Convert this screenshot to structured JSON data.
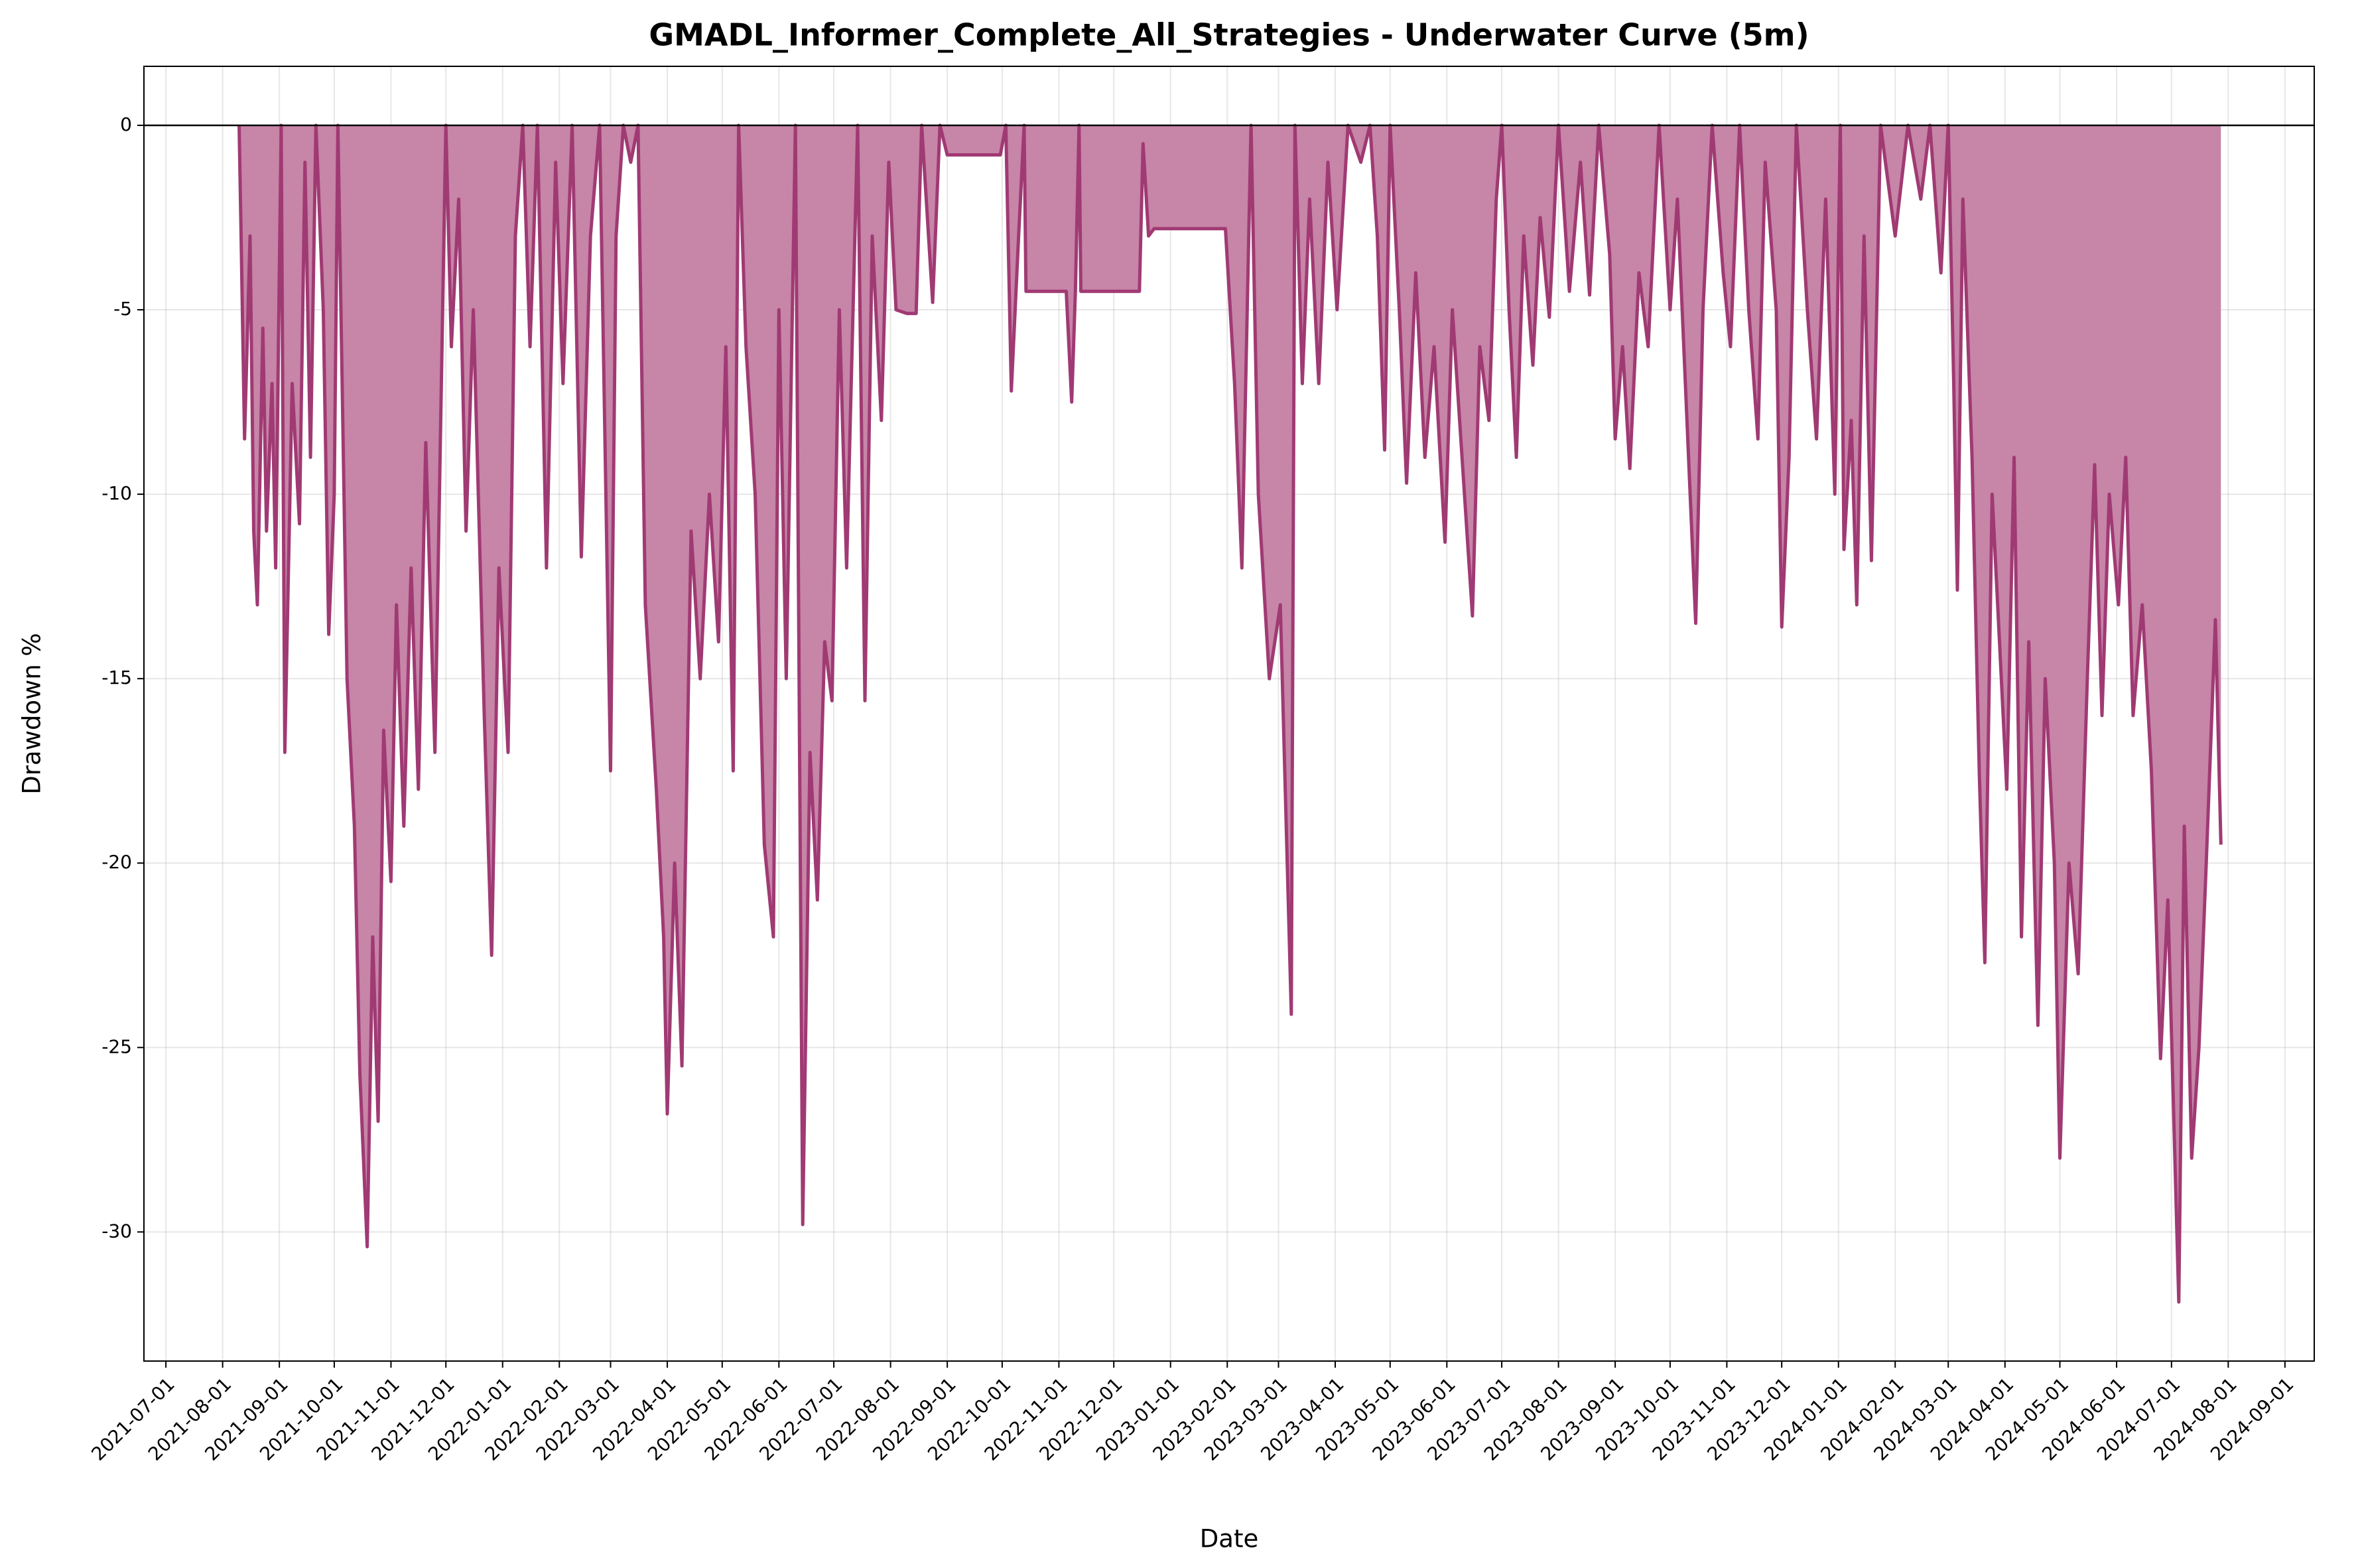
{
  "chart_data": {
    "type": "area",
    "title": "GMADL_Informer_Complete_All_Strategies - Underwater Curve (5m)",
    "x_label": "Date",
    "y_label": "Drawdown %",
    "color": "#a03a73",
    "fill_color": "#c785a8",
    "grid": true,
    "xlim": [
      "2021-06-19",
      "2024-09-17"
    ],
    "ylim": [
      -33.5,
      1.6
    ],
    "yticks": [
      0,
      -5,
      -10,
      -15,
      -20,
      -25,
      -30
    ],
    "xticks": [
      "2021-07-01",
      "2021-08-01",
      "2021-09-01",
      "2021-10-01",
      "2021-11-01",
      "2021-12-01",
      "2022-01-01",
      "2022-02-01",
      "2022-03-01",
      "2022-04-01",
      "2022-05-01",
      "2022-06-01",
      "2022-07-01",
      "2022-08-01",
      "2022-09-01",
      "2022-10-01",
      "2022-11-01",
      "2022-12-01",
      "2023-01-01",
      "2023-02-01",
      "2023-03-01",
      "2023-04-01",
      "2023-05-01",
      "2023-06-01",
      "2023-07-01",
      "2023-08-01",
      "2023-09-01",
      "2023-10-01",
      "2023-11-01",
      "2023-12-01",
      "2024-01-01",
      "2024-02-01",
      "2024-03-01",
      "2024-04-01",
      "2024-05-01",
      "2024-06-01",
      "2024-07-01",
      "2024-08-01",
      "2024-09-01"
    ],
    "x": [
      "2021-08-10",
      "2021-08-11",
      "2021-08-13",
      "2021-08-16",
      "2021-08-18",
      "2021-08-20",
      "2021-08-23",
      "2021-08-25",
      "2021-08-28",
      "2021-08-30",
      "2021-09-02",
      "2021-09-04",
      "2021-09-08",
      "2021-09-12",
      "2021-09-15",
      "2021-09-18",
      "2021-09-21",
      "2021-09-25",
      "2021-09-28",
      "2021-10-01",
      "2021-10-03",
      "2021-10-08",
      "2021-10-12",
      "2021-10-15",
      "2021-10-19",
      "2021-10-22",
      "2021-10-25",
      "2021-10-28",
      "2021-11-01",
      "2021-11-04",
      "2021-11-08",
      "2021-11-12",
      "2021-11-16",
      "2021-11-20",
      "2021-11-25",
      "2021-12-01",
      "2021-12-04",
      "2021-12-08",
      "2021-12-12",
      "2021-12-16",
      "2021-12-22",
      "2021-12-26",
      "2021-12-30",
      "2022-01-04",
      "2022-01-08",
      "2022-01-12",
      "2022-01-16",
      "2022-01-20",
      "2022-01-25",
      "2022-01-30",
      "2022-02-03",
      "2022-02-08",
      "2022-02-13",
      "2022-02-18",
      "2022-02-23",
      "2022-03-01",
      "2022-03-04",
      "2022-03-08",
      "2022-03-12",
      "2022-03-16",
      "2022-03-20",
      "2022-03-26",
      "2022-03-30",
      "2022-04-01",
      "2022-04-05",
      "2022-04-09",
      "2022-04-14",
      "2022-04-19",
      "2022-04-24",
      "2022-04-29",
      "2022-05-03",
      "2022-05-07",
      "2022-05-10",
      "2022-05-14",
      "2022-05-19",
      "2022-05-24",
      "2022-05-29",
      "2022-06-01",
      "2022-06-05",
      "2022-06-10",
      "2022-06-14",
      "2022-06-18",
      "2022-06-22",
      "2022-06-26",
      "2022-06-30",
      "2022-07-04",
      "2022-07-08",
      "2022-07-14",
      "2022-07-18",
      "2022-07-22",
      "2022-07-27",
      "2022-07-31",
      "2022-08-04",
      "2022-08-10",
      "2022-08-15",
      "2022-08-18",
      "2022-08-24",
      "2022-08-28",
      "2022-09-01",
      "2022-09-30",
      "2022-10-03",
      "2022-10-06",
      "2022-10-10",
      "2022-10-13",
      "2022-10-14",
      "2022-11-05",
      "2022-11-08",
      "2022-11-10",
      "2022-11-12",
      "2022-11-13",
      "2022-12-15",
      "2022-12-17",
      "2022-12-20",
      "2022-12-23",
      "2023-01-31",
      "2023-02-05",
      "2023-02-09",
      "2023-02-14",
      "2023-02-18",
      "2023-02-24",
      "2023-03-02",
      "2023-03-08",
      "2023-03-10",
      "2023-03-14",
      "2023-03-18",
      "2023-03-23",
      "2023-03-28",
      "2023-04-02",
      "2023-04-08",
      "2023-04-15",
      "2023-04-20",
      "2023-04-24",
      "2023-04-28",
      "2023-05-01",
      "2023-05-06",
      "2023-05-10",
      "2023-05-15",
      "2023-05-20",
      "2023-05-25",
      "2023-05-31",
      "2023-06-04",
      "2023-06-15",
      "2023-06-19",
      "2023-06-24",
      "2023-06-28",
      "2023-07-01",
      "2023-07-05",
      "2023-07-09",
      "2023-07-13",
      "2023-07-18",
      "2023-07-22",
      "2023-07-27",
      "2023-08-01",
      "2023-08-07",
      "2023-08-13",
      "2023-08-18",
      "2023-08-23",
      "2023-08-29",
      "2023-09-01",
      "2023-09-05",
      "2023-09-09",
      "2023-09-14",
      "2023-09-19",
      "2023-09-25",
      "2023-10-01",
      "2023-10-05",
      "2023-10-15",
      "2023-10-19",
      "2023-10-24",
      "2023-10-30",
      "2023-11-03",
      "2023-11-08",
      "2023-11-13",
      "2023-11-18",
      "2023-11-22",
      "2023-11-28",
      "2023-12-01",
      "2023-12-05",
      "2023-12-09",
      "2023-12-15",
      "2023-12-20",
      "2023-12-25",
      "2023-12-30",
      "2024-01-02",
      "2024-01-04",
      "2024-01-08",
      "2024-01-11",
      "2024-01-15",
      "2024-01-19",
      "2024-01-24",
      "2024-02-01",
      "2024-02-08",
      "2024-02-15",
      "2024-02-20",
      "2024-02-26",
      "2024-03-01",
      "2024-03-04",
      "2024-03-06",
      "2024-03-09",
      "2024-03-14",
      "2024-03-18",
      "2024-03-21",
      "2024-03-25",
      "2024-03-29",
      "2024-04-02",
      "2024-04-06",
      "2024-04-10",
      "2024-04-14",
      "2024-04-19",
      "2024-04-23",
      "2024-04-28",
      "2024-05-01",
      "2024-05-06",
      "2024-05-11",
      "2024-05-16",
      "2024-05-20",
      "2024-05-24",
      "2024-05-28",
      "2024-06-02",
      "2024-06-06",
      "2024-06-10",
      "2024-06-15",
      "2024-06-20",
      "2024-06-25",
      "2024-06-29",
      "2024-07-05",
      "2024-07-08",
      "2024-07-12",
      "2024-07-16",
      "2024-07-20",
      "2024-07-25",
      "2024-07-28"
    ],
    "values": [
      0,
      -2.7,
      -8.5,
      -3,
      -11,
      -13,
      -5.5,
      -11,
      -7,
      -12,
      0,
      -17,
      -7,
      -10.8,
      -1,
      -9,
      0,
      -5,
      -13.8,
      -10,
      0,
      -15,
      -19,
      -25.7,
      -30.4,
      -22,
      -27,
      -16.4,
      -20.5,
      -13,
      -19,
      -12,
      -18,
      -8.6,
      -17,
      0,
      -6,
      -2,
      -11,
      -5,
      -16,
      -22.5,
      -12,
      -17,
      -3,
      0,
      -6,
      0,
      -12,
      -1,
      -7,
      0,
      -11.7,
      -3,
      0,
      -17.5,
      -3,
      0,
      -1,
      0,
      -13,
      -18,
      -22,
      -26.8,
      -20,
      -25.5,
      -11,
      -15,
      -10,
      -14,
      -6,
      -17.5,
      0,
      -6,
      -10,
      -19.5,
      -22,
      -5,
      -15,
      0,
      -29.8,
      -17,
      -21,
      -14,
      -15.6,
      -5,
      -12,
      0,
      -15.6,
      -3,
      -8,
      -1,
      -5,
      -5.1,
      -5.1,
      0,
      -4.8,
      0,
      -0.8,
      -0.8,
      0,
      -7.2,
      -3,
      0,
      -4.5,
      -4.5,
      -7.5,
      -4.5,
      0,
      -4.5,
      -4.5,
      -0.5,
      -3,
      -2.8,
      -2.8,
      -7,
      -12,
      0,
      -10,
      -15,
      -13,
      -24.1,
      0,
      -7,
      -2,
      -7,
      -1,
      -5,
      0,
      -1,
      0,
      -3,
      -8.8,
      0,
      -5,
      -9.7,
      -4,
      -9,
      -6,
      -11.3,
      -5,
      -13.3,
      -6,
      -8,
      -2,
      0,
      -5,
      -9,
      -3,
      -6.5,
      -2.5,
      -5.2,
      0,
      -4.5,
      -1,
      -4.6,
      0,
      -3.5,
      -8.5,
      -6,
      -9.3,
      -4,
      -6,
      0,
      -5,
      -2,
      -13.5,
      -5,
      0,
      -4,
      -6,
      0,
      -5,
      -8.5,
      -1,
      -5,
      -13.6,
      -9,
      0,
      -5,
      -8.5,
      -2,
      -10,
      0,
      -11.5,
      -8,
      -13,
      -3,
      -11.8,
      0,
      -3,
      0,
      -2,
      0,
      -4,
      0,
      -7,
      -12.6,
      -2,
      -9,
      -17.6,
      -22.7,
      -10,
      -14,
      -18,
      -9,
      -22,
      -14,
      -24.4,
      -15,
      -20,
      -28,
      -20,
      -23,
      -15,
      -9.2,
      -16,
      -10,
      -13,
      -9,
      -16,
      -13,
      -17.5,
      -25.3,
      -21,
      -31.9,
      -19,
      -28,
      -25,
      -20,
      -13.4,
      -19.5
    ]
  }
}
